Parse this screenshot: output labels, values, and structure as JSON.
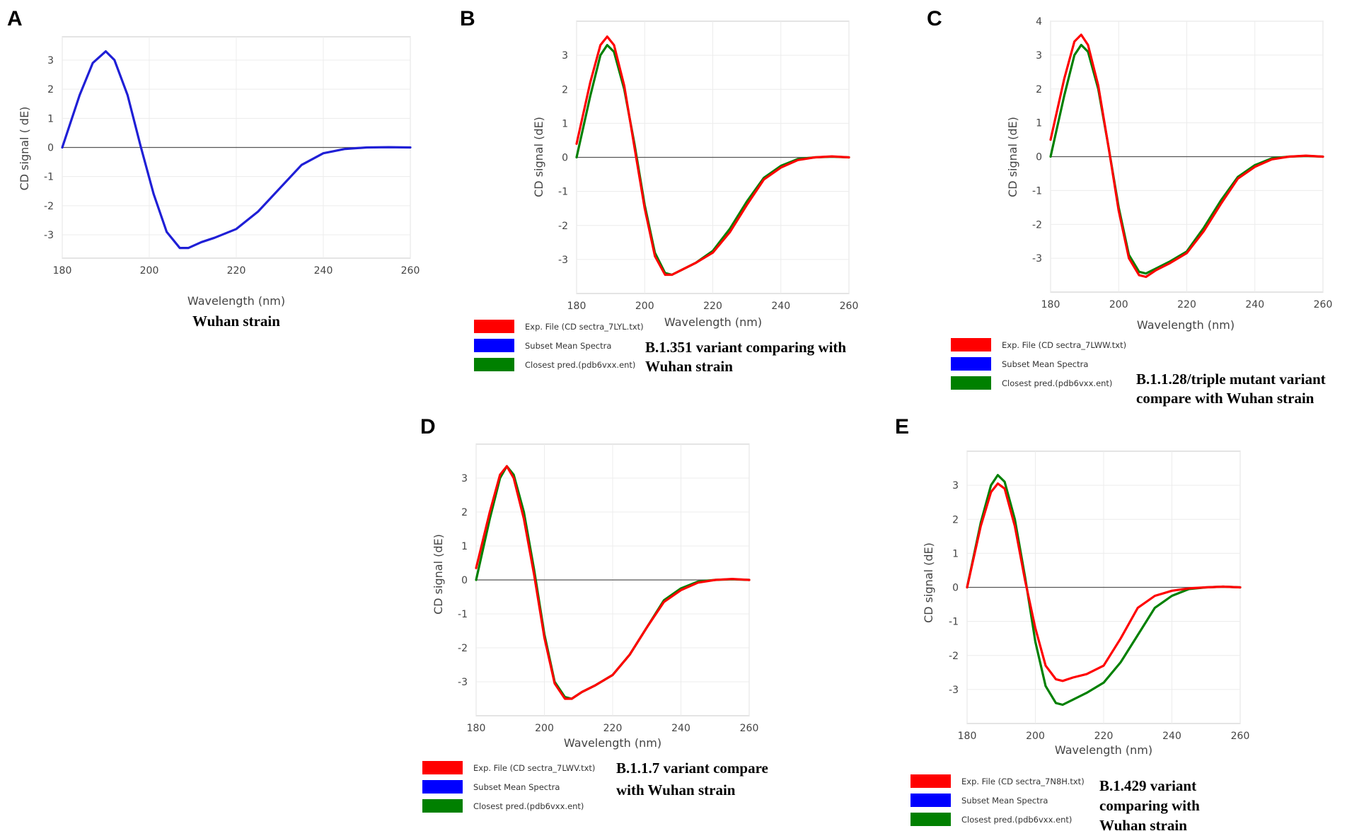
{
  "colors": {
    "red": "#ff0000",
    "blue": "#0000ff",
    "green": "#008000",
    "blue_curve": "#1f1fd6",
    "grid": "#ececec",
    "frame": "#d3d3d3",
    "zero": "#555555"
  },
  "chart_data": [
    {
      "type": "line",
      "panel": "A",
      "xlabel": "Wavelength (nm)",
      "ylabel": "CD signal ( dE)",
      "xlim": [
        180,
        260
      ],
      "ylim": [
        -3.8,
        3.8
      ],
      "x_ticks": [
        180,
        200,
        220,
        240,
        260
      ],
      "y_ticks": [
        3,
        2,
        1,
        0,
        -1,
        -2,
        -3
      ],
      "caption": [
        "Wuhan strain"
      ],
      "legend": [],
      "series": [
        {
          "name": "Wuhan strain",
          "color": "#1f1fd6",
          "x": [
            180,
            184,
            187,
            190,
            192,
            195,
            198,
            201,
            204,
            207,
            209,
            212,
            215,
            220,
            225,
            230,
            235,
            240,
            245,
            250,
            255,
            260
          ],
          "y": [
            0,
            1.8,
            2.9,
            3.3,
            3.0,
            1.8,
            0.05,
            -1.6,
            -2.9,
            -3.45,
            -3.45,
            -3.25,
            -3.1,
            -2.8,
            -2.2,
            -1.4,
            -0.6,
            -0.2,
            -0.05,
            0.0,
            0.01,
            0.0
          ]
        }
      ]
    },
    {
      "type": "line",
      "panel": "B",
      "xlabel": "Wavelength (nm)",
      "ylabel": "CD signal (dE)",
      "xlim": [
        180,
        260
      ],
      "ylim": [
        -4.0,
        4.0
      ],
      "x_ticks": [
        180,
        200,
        220,
        240,
        260
      ],
      "y_ticks": [
        3,
        2,
        1,
        0,
        -1,
        -2,
        -3
      ],
      "caption": [
        "B.1.351 variant  comparing with",
        "Wuhan strain"
      ],
      "legend": [
        {
          "label": "Exp. File (CD sectra_7LYL.txt)",
          "color": "#ff0000"
        },
        {
          "label": "Subset Mean Spectra",
          "color": "#0000ff"
        },
        {
          "label": "Closest pred.(pdb6vxx.ent)",
          "color": "#008000"
        }
      ],
      "series": [
        {
          "name": "Closest pred.(pdb6vxx.ent)",
          "color": "#008000",
          "x": [
            180,
            184,
            187,
            189,
            191,
            194,
            197,
            200,
            203,
            206,
            208,
            211,
            215,
            220,
            225,
            230,
            235,
            240,
            245,
            250,
            255,
            260
          ],
          "y": [
            0.0,
            1.8,
            3.0,
            3.3,
            3.1,
            2.0,
            0.4,
            -1.4,
            -2.8,
            -3.4,
            -3.45,
            -3.3,
            -3.1,
            -2.75,
            -2.1,
            -1.3,
            -0.6,
            -0.25,
            -0.05,
            0.0,
            0.02,
            0.0
          ]
        },
        {
          "name": "Exp. File (CD sectra_7LYL.txt)",
          "color": "#ff0000",
          "x": [
            180,
            184,
            187,
            189,
            191,
            194,
            197,
            200,
            203,
            206,
            208,
            211,
            215,
            220,
            225,
            230,
            235,
            240,
            245,
            250,
            255,
            260
          ],
          "y": [
            0.4,
            2.2,
            3.3,
            3.55,
            3.3,
            2.1,
            0.3,
            -1.5,
            -2.9,
            -3.45,
            -3.45,
            -3.3,
            -3.1,
            -2.8,
            -2.2,
            -1.4,
            -0.65,
            -0.3,
            -0.08,
            0.0,
            0.03,
            0.0
          ]
        }
      ]
    },
    {
      "type": "line",
      "panel": "C",
      "xlabel": "Wavelength (nm)",
      "ylabel": "CD signal (dE)",
      "xlim": [
        180,
        260
      ],
      "ylim": [
        -4.0,
        4.0
      ],
      "x_ticks": [
        180,
        200,
        220,
        240,
        260
      ],
      "y_ticks": [
        4,
        3,
        2,
        1,
        0,
        -1,
        -2,
        -3
      ],
      "caption": [
        "B.1.1.28/triple mutant variant",
        "compare with  Wuhan strain"
      ],
      "legend": [
        {
          "label": "Exp. File (CD sectra_7LWW.txt)",
          "color": "#ff0000"
        },
        {
          "label": "Subset Mean Spectra",
          "color": "#0000ff"
        },
        {
          "label": "Closest pred.(pdb6vxx.ent)",
          "color": "#008000"
        }
      ],
      "series": [
        {
          "name": "Closest pred.(pdb6vxx.ent)",
          "color": "#008000",
          "x": [
            180,
            184,
            187,
            189,
            191,
            194,
            197,
            200,
            203,
            206,
            208,
            211,
            215,
            220,
            225,
            230,
            235,
            240,
            245,
            250,
            255,
            260
          ],
          "y": [
            0.0,
            1.8,
            3.0,
            3.3,
            3.1,
            2.0,
            0.3,
            -1.5,
            -2.9,
            -3.4,
            -3.45,
            -3.3,
            -3.1,
            -2.8,
            -2.1,
            -1.3,
            -0.6,
            -0.25,
            -0.05,
            0.0,
            0.02,
            0.0
          ]
        },
        {
          "name": "Exp. File (CD sectra_7LWW.txt)",
          "color": "#ff0000",
          "x": [
            180,
            184,
            187,
            189,
            191,
            194,
            197,
            200,
            203,
            206,
            208,
            211,
            215,
            220,
            225,
            230,
            235,
            240,
            245,
            250,
            255,
            260
          ],
          "y": [
            0.5,
            2.3,
            3.4,
            3.6,
            3.3,
            2.1,
            0.3,
            -1.6,
            -3.0,
            -3.5,
            -3.55,
            -3.35,
            -3.15,
            -2.85,
            -2.2,
            -1.4,
            -0.65,
            -0.3,
            -0.08,
            0.0,
            0.03,
            0.0
          ]
        }
      ]
    },
    {
      "type": "line",
      "panel": "D",
      "xlabel": "Wavelength (nm)",
      "ylabel": "CD signal (dE)",
      "xlim": [
        180,
        260
      ],
      "ylim": [
        -4.0,
        4.0
      ],
      "x_ticks": [
        180,
        200,
        220,
        240,
        260
      ],
      "y_ticks": [
        3,
        2,
        1,
        0,
        -1,
        -2,
        -3
      ],
      "caption": [
        "B.1.1.7 variant compare",
        "with  Wuhan strain"
      ],
      "legend": [
        {
          "label": "Exp. File (CD sectra_7LWV.txt)",
          "color": "#ff0000"
        },
        {
          "label": "Subset Mean Spectra",
          "color": "#0000ff"
        },
        {
          "label": "Closest pred.(pdb6vxx.ent)",
          "color": "#008000"
        }
      ],
      "series": [
        {
          "name": "Closest pred.(pdb6vxx.ent)",
          "color": "#008000",
          "x": [
            180,
            184,
            187,
            189,
            191,
            194,
            197,
            200,
            203,
            206,
            208,
            211,
            215,
            220,
            225,
            230,
            235,
            240,
            245,
            250,
            255,
            260
          ],
          "y": [
            0.0,
            1.8,
            3.0,
            3.35,
            3.1,
            2.0,
            0.3,
            -1.6,
            -3.0,
            -3.45,
            -3.5,
            -3.3,
            -3.1,
            -2.8,
            -2.2,
            -1.4,
            -0.6,
            -0.25,
            -0.05,
            0.0,
            0.02,
            0.0
          ]
        },
        {
          "name": "Exp. File (CD sectra_7LWV.txt)",
          "color": "#ff0000",
          "x": [
            180,
            184,
            187,
            189,
            191,
            194,
            197,
            200,
            203,
            206,
            208,
            211,
            215,
            220,
            225,
            230,
            235,
            240,
            245,
            250,
            255,
            260
          ],
          "y": [
            0.35,
            2.0,
            3.1,
            3.35,
            3.0,
            1.8,
            0.15,
            -1.7,
            -3.05,
            -3.5,
            -3.5,
            -3.3,
            -3.1,
            -2.8,
            -2.2,
            -1.4,
            -0.65,
            -0.3,
            -0.08,
            0.0,
            0.03,
            0.0
          ]
        }
      ]
    },
    {
      "type": "line",
      "panel": "E",
      "xlabel": "Wavelength (nm)",
      "ylabel": "CD signal (dE)",
      "xlim": [
        180,
        260
      ],
      "ylim": [
        -4.0,
        4.0
      ],
      "x_ticks": [
        180,
        200,
        220,
        240,
        260
      ],
      "y_ticks": [
        3,
        2,
        1,
        0,
        -1,
        -2,
        -3
      ],
      "caption": [
        "B.1.429 variant",
        "comparing with",
        "Wuhan strain"
      ],
      "legend": [
        {
          "label": "Exp. File (CD sectra_7N8H.txt)",
          "color": "#ff0000"
        },
        {
          "label": "Subset Mean Spectra",
          "color": "#0000ff"
        },
        {
          "label": "Closest pred.(pdb6vxx.ent)",
          "color": "#008000"
        }
      ],
      "series": [
        {
          "name": "Closest pred.(pdb6vxx.ent)",
          "color": "#008000",
          "x": [
            180,
            184,
            187,
            189,
            191,
            194,
            197,
            200,
            203,
            206,
            208,
            211,
            215,
            220,
            225,
            230,
            235,
            240,
            245,
            250,
            255,
            260
          ],
          "y": [
            0.0,
            1.9,
            3.0,
            3.3,
            3.1,
            2.0,
            0.3,
            -1.6,
            -2.9,
            -3.4,
            -3.45,
            -3.3,
            -3.1,
            -2.8,
            -2.2,
            -1.4,
            -0.6,
            -0.25,
            -0.05,
            0.0,
            0.02,
            0.0
          ]
        },
        {
          "name": "Exp. File (CD sectra_7N8H.txt)",
          "color": "#ff0000",
          "x": [
            180,
            184,
            187,
            189,
            191,
            194,
            197,
            200,
            203,
            206,
            208,
            211,
            215,
            220,
            225,
            230,
            235,
            240,
            245,
            250,
            255,
            260
          ],
          "y": [
            0.0,
            1.8,
            2.8,
            3.05,
            2.9,
            1.8,
            0.2,
            -1.2,
            -2.3,
            -2.7,
            -2.75,
            -2.65,
            -2.55,
            -2.3,
            -1.5,
            -0.6,
            -0.25,
            -0.1,
            -0.03,
            0.0,
            0.02,
            0.0
          ]
        }
      ]
    }
  ]
}
